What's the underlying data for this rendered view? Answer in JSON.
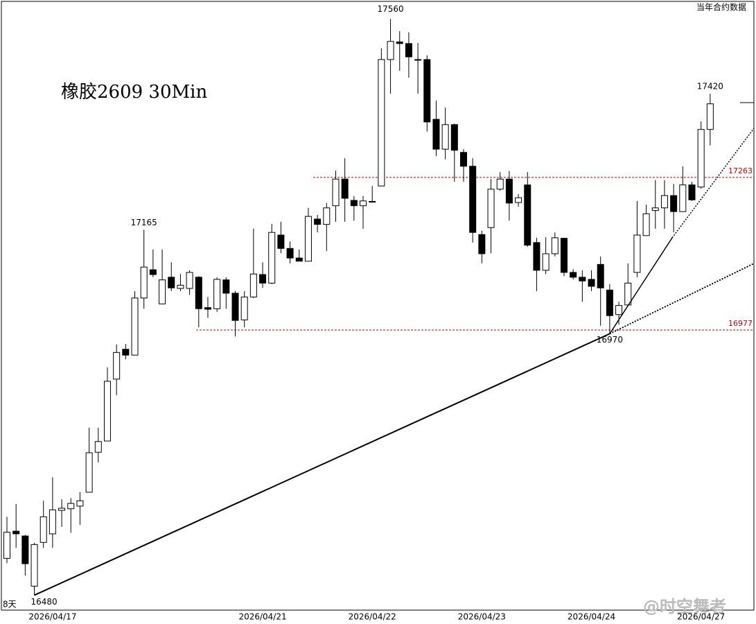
{
  "chart_data": {
    "type": "candlestick",
    "title": "橡胶2609 30Min",
    "top_right_label": "当年合约数据",
    "period_label": "8天",
    "watermark": "@时空舞者",
    "categories": [
      null,
      null,
      null,
      null,
      null,
      "2026/04/17",
      null,
      null,
      null,
      null,
      null,
      null,
      null,
      null,
      null,
      null,
      null,
      null,
      null,
      null,
      null,
      null,
      null,
      null,
      null,
      null,
      null,
      null,
      "2026/04/21",
      null,
      null,
      null,
      null,
      null,
      null,
      null,
      null,
      null,
      null,
      null,
      "2026/04/22",
      null,
      null,
      null,
      null,
      null,
      null,
      null,
      null,
      null,
      null,
      null,
      "2026/04/23",
      null,
      null,
      null,
      null,
      null,
      null,
      null,
      null,
      null,
      null,
      null,
      "2026/04/24",
      null,
      null,
      null,
      null,
      null,
      null,
      null,
      null,
      null,
      null,
      null,
      "2026/04/27",
      null
    ],
    "open": [
      16549,
      16600,
      16591,
      16497,
      16579,
      16595,
      16639,
      16642,
      16647,
      16673,
      16748,
      16769,
      16885,
      16941,
      16930,
      17037,
      17090,
      17026,
      17076,
      17055,
      17055,
      17076,
      17019,
      17017,
      17071,
      17046,
      16996,
      17039,
      17081,
      17065,
      17155,
      17130,
      17112,
      17106,
      17185,
      17175,
      17210,
      17260,
      17220,
      17210,
      17217,
      17247,
      17484,
      17517,
      17514,
      17484,
      17484,
      17372,
      17316,
      17362,
      17310,
      17284,
      17156,
      17169,
      17241,
      17260,
      17216,
      17249,
      17141,
      17089,
      17120,
      17149,
      17085,
      17076,
      17072,
      17100,
      17052,
      17006,
      17024,
      17085,
      17154,
      17201,
      17206,
      17229,
      17199,
      17249,
      17245,
      17353
    ],
    "high": [
      16627,
      16651,
      16593,
      16578,
      16657,
      16701,
      16660,
      16662,
      16673,
      16794,
      16794,
      16907,
      16950,
      16951,
      17050,
      17165,
      17128,
      17128,
      17104,
      17082,
      17089,
      17078,
      17039,
      17076,
      17076,
      17050,
      17050,
      17167,
      17104,
      17176,
      17180,
      17143,
      17128,
      17206,
      17193,
      17215,
      17276,
      17299,
      17228,
      17228,
      17247,
      17505,
      17560,
      17537,
      17535,
      17515,
      17492,
      17407,
      17394,
      17364,
      17316,
      17299,
      17163,
      17260,
      17273,
      17275,
      17232,
      17273,
      17150,
      17151,
      17160,
      17150,
      17091,
      17089,
      17089,
      17115,
      17063,
      17030,
      17102,
      17219,
      17212,
      17258,
      17258,
      17251,
      17284,
      17255,
      17368,
      17420
    ],
    "low": [
      16540,
      16569,
      16517,
      16480,
      16569,
      16569,
      16608,
      16597,
      16612,
      16673,
      16729,
      16769,
      16855,
      16922,
      16930,
      17017,
      17076,
      17026,
      17050,
      17050,
      17043,
      16982,
      17000,
      17011,
      17017,
      16965,
      16982,
      17037,
      17056,
      17063,
      17121,
      17102,
      17106,
      17106,
      17160,
      17125,
      17180,
      17180,
      17182,
      17167,
      17216,
      17247,
      17420,
      17463,
      17450,
      17420,
      17349,
      17303,
      17297,
      17255,
      17255,
      17141,
      17102,
      17121,
      17238,
      17182,
      17208,
      17133,
      17050,
      17082,
      17115,
      17078,
      17072,
      17030,
      17050,
      16985,
      16970,
      16987,
      17024,
      17076,
      17154,
      17167,
      17167,
      17160,
      17199,
      17219,
      17242,
      17323
    ],
    "close": [
      16598,
      16595,
      16539,
      16575,
      16627,
      16640,
      16643,
      16652,
      16657,
      16747,
      16768,
      16881,
      16935,
      16930,
      17037,
      17095,
      17081,
      17071,
      17056,
      17061,
      17085,
      17017,
      17016,
      17072,
      17046,
      16995,
      17039,
      17082,
      17065,
      17160,
      17130,
      17112,
      17106,
      17190,
      17175,
      17206,
      17260,
      17224,
      17210,
      17219,
      17218,
      17484,
      17518,
      17514,
      17489,
      17483,
      17367,
      17316,
      17362,
      17314,
      17284,
      17160,
      17120,
      17241,
      17260,
      17215,
      17225,
      17136,
      17089,
      17120,
      17150,
      17085,
      17076,
      17069,
      17059,
      17056,
      17004,
      17023,
      17065,
      17155,
      17195,
      17206,
      17229,
      17199,
      17249,
      17221,
      17353,
      17401
    ],
    "up_color": "#ffffff",
    "down_color": "#000000",
    "ylim": [
      16452,
      17593
    ],
    "levels": [
      {
        "value": 17263,
        "color": "#cc0000"
      },
      {
        "value": 16977,
        "color": "#cc0000"
      }
    ]
  }
}
